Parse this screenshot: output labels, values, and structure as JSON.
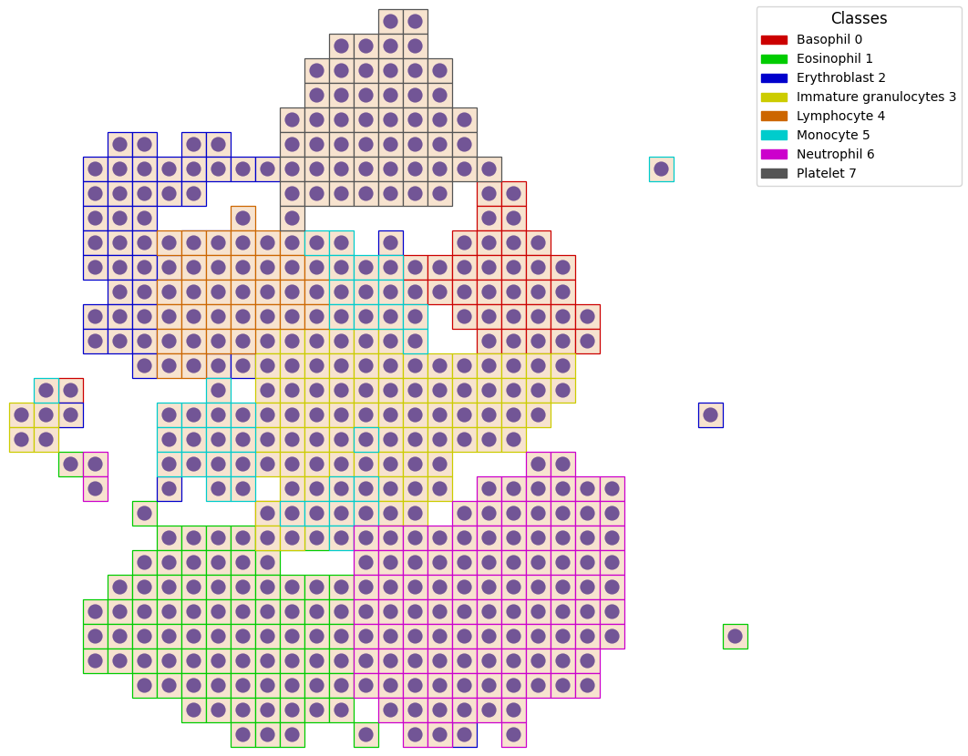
{
  "chart_data": {
    "type": "scatter",
    "tick_labels": false,
    "legend": "upper right",
    "legend_title": "Classes",
    "series": [
      {
        "name": "Basophil 0",
        "color": "#cc0000",
        "runs": [
          [
            7,
            19,
            20
          ],
          [
            8,
            19,
            20
          ],
          [
            9,
            18,
            21
          ],
          [
            10,
            16,
            22
          ],
          [
            11,
            15,
            22
          ],
          [
            12,
            18,
            23
          ],
          [
            13,
            19,
            23
          ],
          [
            15,
            2,
            2
          ],
          [
            20,
            10,
            10
          ]
        ]
      },
      {
        "name": "Eosinophil 1",
        "color": "#00cc00",
        "runs": [
          [
            18,
            2,
            2
          ],
          [
            20,
            5,
            5
          ],
          [
            21,
            6,
            12
          ],
          [
            22,
            5,
            10
          ],
          [
            23,
            4,
            13
          ],
          [
            24,
            3,
            13
          ],
          [
            25,
            3,
            13
          ],
          [
            26,
            3,
            13
          ],
          [
            27,
            5,
            13
          ],
          [
            28,
            7,
            13
          ],
          [
            29,
            9,
            11
          ],
          [
            29,
            14,
            14
          ],
          [
            25,
            29,
            29
          ]
        ]
      },
      {
        "name": "Erythroblast 2",
        "color": "#0000cc",
        "runs": [
          [
            5,
            4,
            5
          ],
          [
            5,
            7,
            8
          ],
          [
            6,
            3,
            10
          ],
          [
            7,
            3,
            7
          ],
          [
            8,
            3,
            5
          ],
          [
            9,
            3,
            5
          ],
          [
            9,
            7,
            8
          ],
          [
            9,
            15,
            15
          ],
          [
            10,
            3,
            6
          ],
          [
            11,
            4,
            5
          ],
          [
            12,
            3,
            5
          ],
          [
            13,
            3,
            5
          ],
          [
            14,
            5,
            5
          ],
          [
            14,
            8,
            9
          ],
          [
            16,
            2,
            2
          ],
          [
            19,
            6,
            6
          ],
          [
            29,
            18,
            18
          ],
          [
            16,
            28,
            28
          ]
        ]
      },
      {
        "name": "Immature granulocytes 3",
        "color": "#cccc00",
        "runs": [
          [
            13,
            10,
            15
          ],
          [
            14,
            10,
            22
          ],
          [
            15,
            10,
            22
          ],
          [
            16,
            10,
            21
          ],
          [
            17,
            10,
            20
          ],
          [
            18,
            10,
            17
          ],
          [
            19,
            11,
            12
          ],
          [
            19,
            15,
            17
          ],
          [
            20,
            10,
            10
          ],
          [
            20,
            15,
            16
          ],
          [
            21,
            10,
            11
          ],
          [
            21,
            15,
            16
          ],
          [
            16,
            0,
            1
          ],
          [
            17,
            0,
            1
          ]
        ]
      },
      {
        "name": "Lymphocyte 4",
        "color": "#cc6600",
        "runs": [
          [
            8,
            9,
            9
          ],
          [
            9,
            6,
            11
          ],
          [
            10,
            7,
            12
          ],
          [
            11,
            6,
            12
          ],
          [
            12,
            6,
            12
          ],
          [
            13,
            6,
            9
          ],
          [
            14,
            6,
            7
          ]
        ]
      },
      {
        "name": "Monocyte 5",
        "color": "#00cccc",
        "runs": [
          [
            9,
            12,
            13
          ],
          [
            10,
            13,
            15
          ],
          [
            11,
            13,
            15
          ],
          [
            12,
            13,
            16
          ],
          [
            13,
            16,
            16
          ],
          [
            15,
            1,
            1
          ],
          [
            15,
            8,
            8
          ],
          [
            16,
            6,
            9
          ],
          [
            17,
            6,
            9
          ],
          [
            17,
            14,
            14
          ],
          [
            18,
            6,
            9
          ],
          [
            19,
            8,
            9
          ],
          [
            19,
            13,
            14
          ],
          [
            20,
            11,
            14
          ],
          [
            21,
            13,
            14
          ],
          [
            6,
            26,
            26
          ]
        ]
      },
      {
        "name": "Neutrophil 6",
        "color": "#cc00cc",
        "runs": [
          [
            18,
            3,
            3
          ],
          [
            19,
            3,
            3
          ],
          [
            18,
            21,
            22
          ],
          [
            19,
            19,
            24
          ],
          [
            20,
            18,
            24
          ],
          [
            21,
            14,
            24
          ],
          [
            22,
            14,
            24
          ],
          [
            23,
            14,
            24
          ],
          [
            24,
            14,
            24
          ],
          [
            25,
            14,
            24
          ],
          [
            26,
            14,
            23
          ],
          [
            27,
            14,
            23
          ],
          [
            28,
            15,
            20
          ],
          [
            29,
            16,
            17
          ],
          [
            29,
            20,
            20
          ]
        ]
      },
      {
        "name": "Platelet 7",
        "color": "#555555",
        "runs": [
          [
            0,
            15,
            16
          ],
          [
            1,
            13,
            16
          ],
          [
            2,
            12,
            17
          ],
          [
            3,
            12,
            17
          ],
          [
            4,
            11,
            18
          ],
          [
            5,
            11,
            18
          ],
          [
            6,
            11,
            19
          ],
          [
            7,
            11,
            17
          ],
          [
            8,
            11,
            11
          ]
        ]
      }
    ]
  }
}
